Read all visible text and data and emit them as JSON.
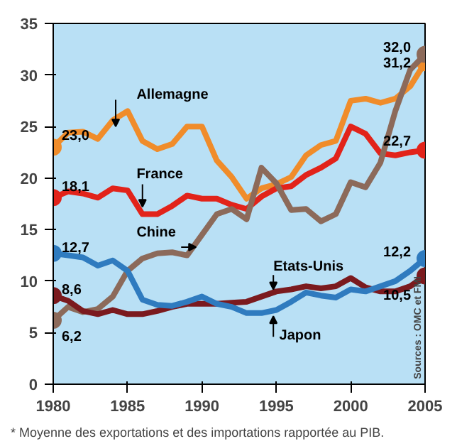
{
  "chart_data": {
    "type": "line",
    "x": [
      1980,
      1981,
      1982,
      1983,
      1984,
      1985,
      1986,
      1987,
      1988,
      1989,
      1990,
      1991,
      1992,
      1993,
      1994,
      1995,
      1996,
      1997,
      1998,
      1999,
      2000,
      2001,
      2002,
      2003,
      2004,
      2005
    ],
    "series": [
      {
        "name": "Allemagne",
        "color": "#f08c2a",
        "values": [
          23.0,
          24.4,
          24.5,
          23.8,
          25.6,
          26.5,
          23.6,
          22.8,
          23.3,
          25.0,
          25.0,
          21.7,
          20.1,
          18.0,
          19.0,
          19.4,
          20.1,
          22.2,
          23.2,
          23.6,
          27.5,
          27.7,
          27.3,
          27.7,
          28.9,
          31.2
        ],
        "value_labels": [
          "23,0",
          null,
          null,
          null,
          null,
          null,
          null,
          null,
          null,
          null,
          null,
          null,
          null,
          null,
          null,
          null,
          null,
          null,
          null,
          null,
          null,
          null,
          null,
          null,
          null,
          "31,2"
        ]
      },
      {
        "name": "France",
        "color": "#e2231a",
        "values": [
          18.1,
          18.7,
          18.5,
          18.1,
          19.0,
          18.8,
          16.5,
          16.5,
          17.3,
          18.3,
          18.0,
          18.0,
          17.4,
          17.0,
          18.2,
          19.0,
          19.2,
          20.3,
          21.0,
          21.9,
          25.0,
          24.3,
          22.4,
          22.2,
          22.5,
          22.7
        ],
        "value_labels": [
          "18,1",
          null,
          null,
          null,
          null,
          null,
          null,
          null,
          null,
          null,
          null,
          null,
          null,
          null,
          null,
          null,
          null,
          null,
          null,
          null,
          null,
          null,
          null,
          null,
          null,
          "22,7"
        ]
      },
      {
        "name": "Chine",
        "color": "#8c6a5a",
        "values": [
          6.2,
          7.5,
          7.0,
          7.3,
          8.5,
          11.0,
          12.2,
          12.7,
          12.8,
          12.5,
          14.5,
          16.5,
          17.0,
          16.0,
          21.0,
          19.5,
          16.9,
          17.0,
          15.8,
          16.5,
          19.6,
          19.1,
          21.5,
          26.5,
          30.5,
          32.0
        ],
        "value_labels": [
          "6,2",
          null,
          null,
          null,
          null,
          null,
          null,
          null,
          null,
          null,
          null,
          null,
          null,
          null,
          null,
          null,
          null,
          null,
          null,
          null,
          null,
          null,
          null,
          null,
          null,
          "32,0"
        ]
      },
      {
        "name": "Etats-Unis",
        "color": "#7b1a1e",
        "values": [
          8.6,
          8.1,
          7.1,
          6.8,
          7.2,
          6.8,
          6.8,
          7.1,
          7.5,
          7.8,
          7.8,
          7.8,
          7.9,
          8.0,
          8.5,
          9.0,
          9.2,
          9.5,
          9.3,
          9.5,
          10.3,
          9.4,
          9.0,
          9.0,
          9.5,
          10.5
        ],
        "value_labels": [
          "8,6",
          null,
          null,
          null,
          null,
          null,
          null,
          null,
          null,
          null,
          null,
          null,
          null,
          null,
          null,
          null,
          null,
          null,
          null,
          null,
          null,
          null,
          null,
          null,
          null,
          "10,5"
        ]
      },
      {
        "name": "Japon",
        "color": "#2f7bbf",
        "values": [
          12.7,
          12.5,
          12.3,
          11.5,
          12.0,
          11.0,
          8.2,
          7.7,
          7.6,
          8.0,
          8.5,
          7.8,
          7.5,
          6.9,
          6.9,
          7.2,
          8.0,
          8.9,
          8.6,
          8.4,
          9.2,
          9.0,
          9.5,
          10.0,
          11.0,
          12.2
        ],
        "value_labels": [
          "12,7",
          null,
          null,
          null,
          null,
          null,
          null,
          null,
          null,
          null,
          null,
          null,
          null,
          null,
          null,
          null,
          null,
          null,
          null,
          null,
          null,
          null,
          null,
          null,
          null,
          "12,2"
        ]
      }
    ],
    "xlim": [
      1980,
      2005
    ],
    "xticks": [
      1980,
      1985,
      1990,
      1995,
      2000,
      2005
    ],
    "ylim": [
      0,
      35
    ],
    "yticks": [
      0,
      5,
      10,
      15,
      20,
      25,
      30,
      35
    ],
    "grid": false,
    "annotations": [
      "Sources : OMC et FMI",
      "* Moyenne des exportations et des importations rapportée au PIB."
    ]
  }
}
